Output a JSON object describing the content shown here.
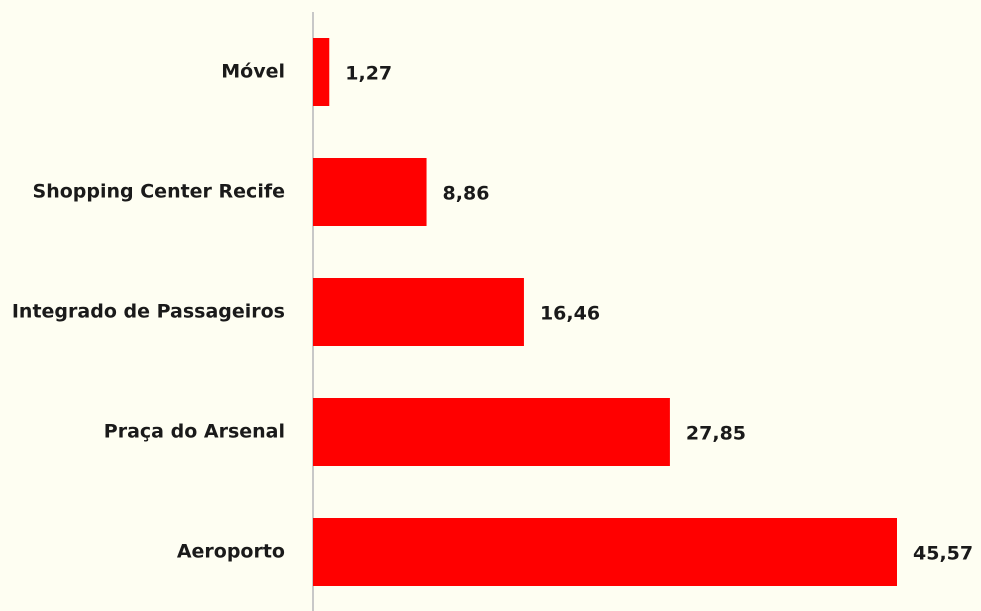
{
  "chart_data": {
    "type": "bar",
    "orientation": "horizontal",
    "categories": [
      "Móvel",
      "Shopping Center Recife",
      "Integrado de Passageiros",
      "Praça do Arsenal",
      "Aeroporto"
    ],
    "values": [
      1.27,
      8.86,
      16.46,
      27.85,
      45.57
    ],
    "value_labels": [
      "1,27",
      "8,86",
      "16,46",
      "27,85",
      "45,57"
    ],
    "color": "#ff0000"
  }
}
